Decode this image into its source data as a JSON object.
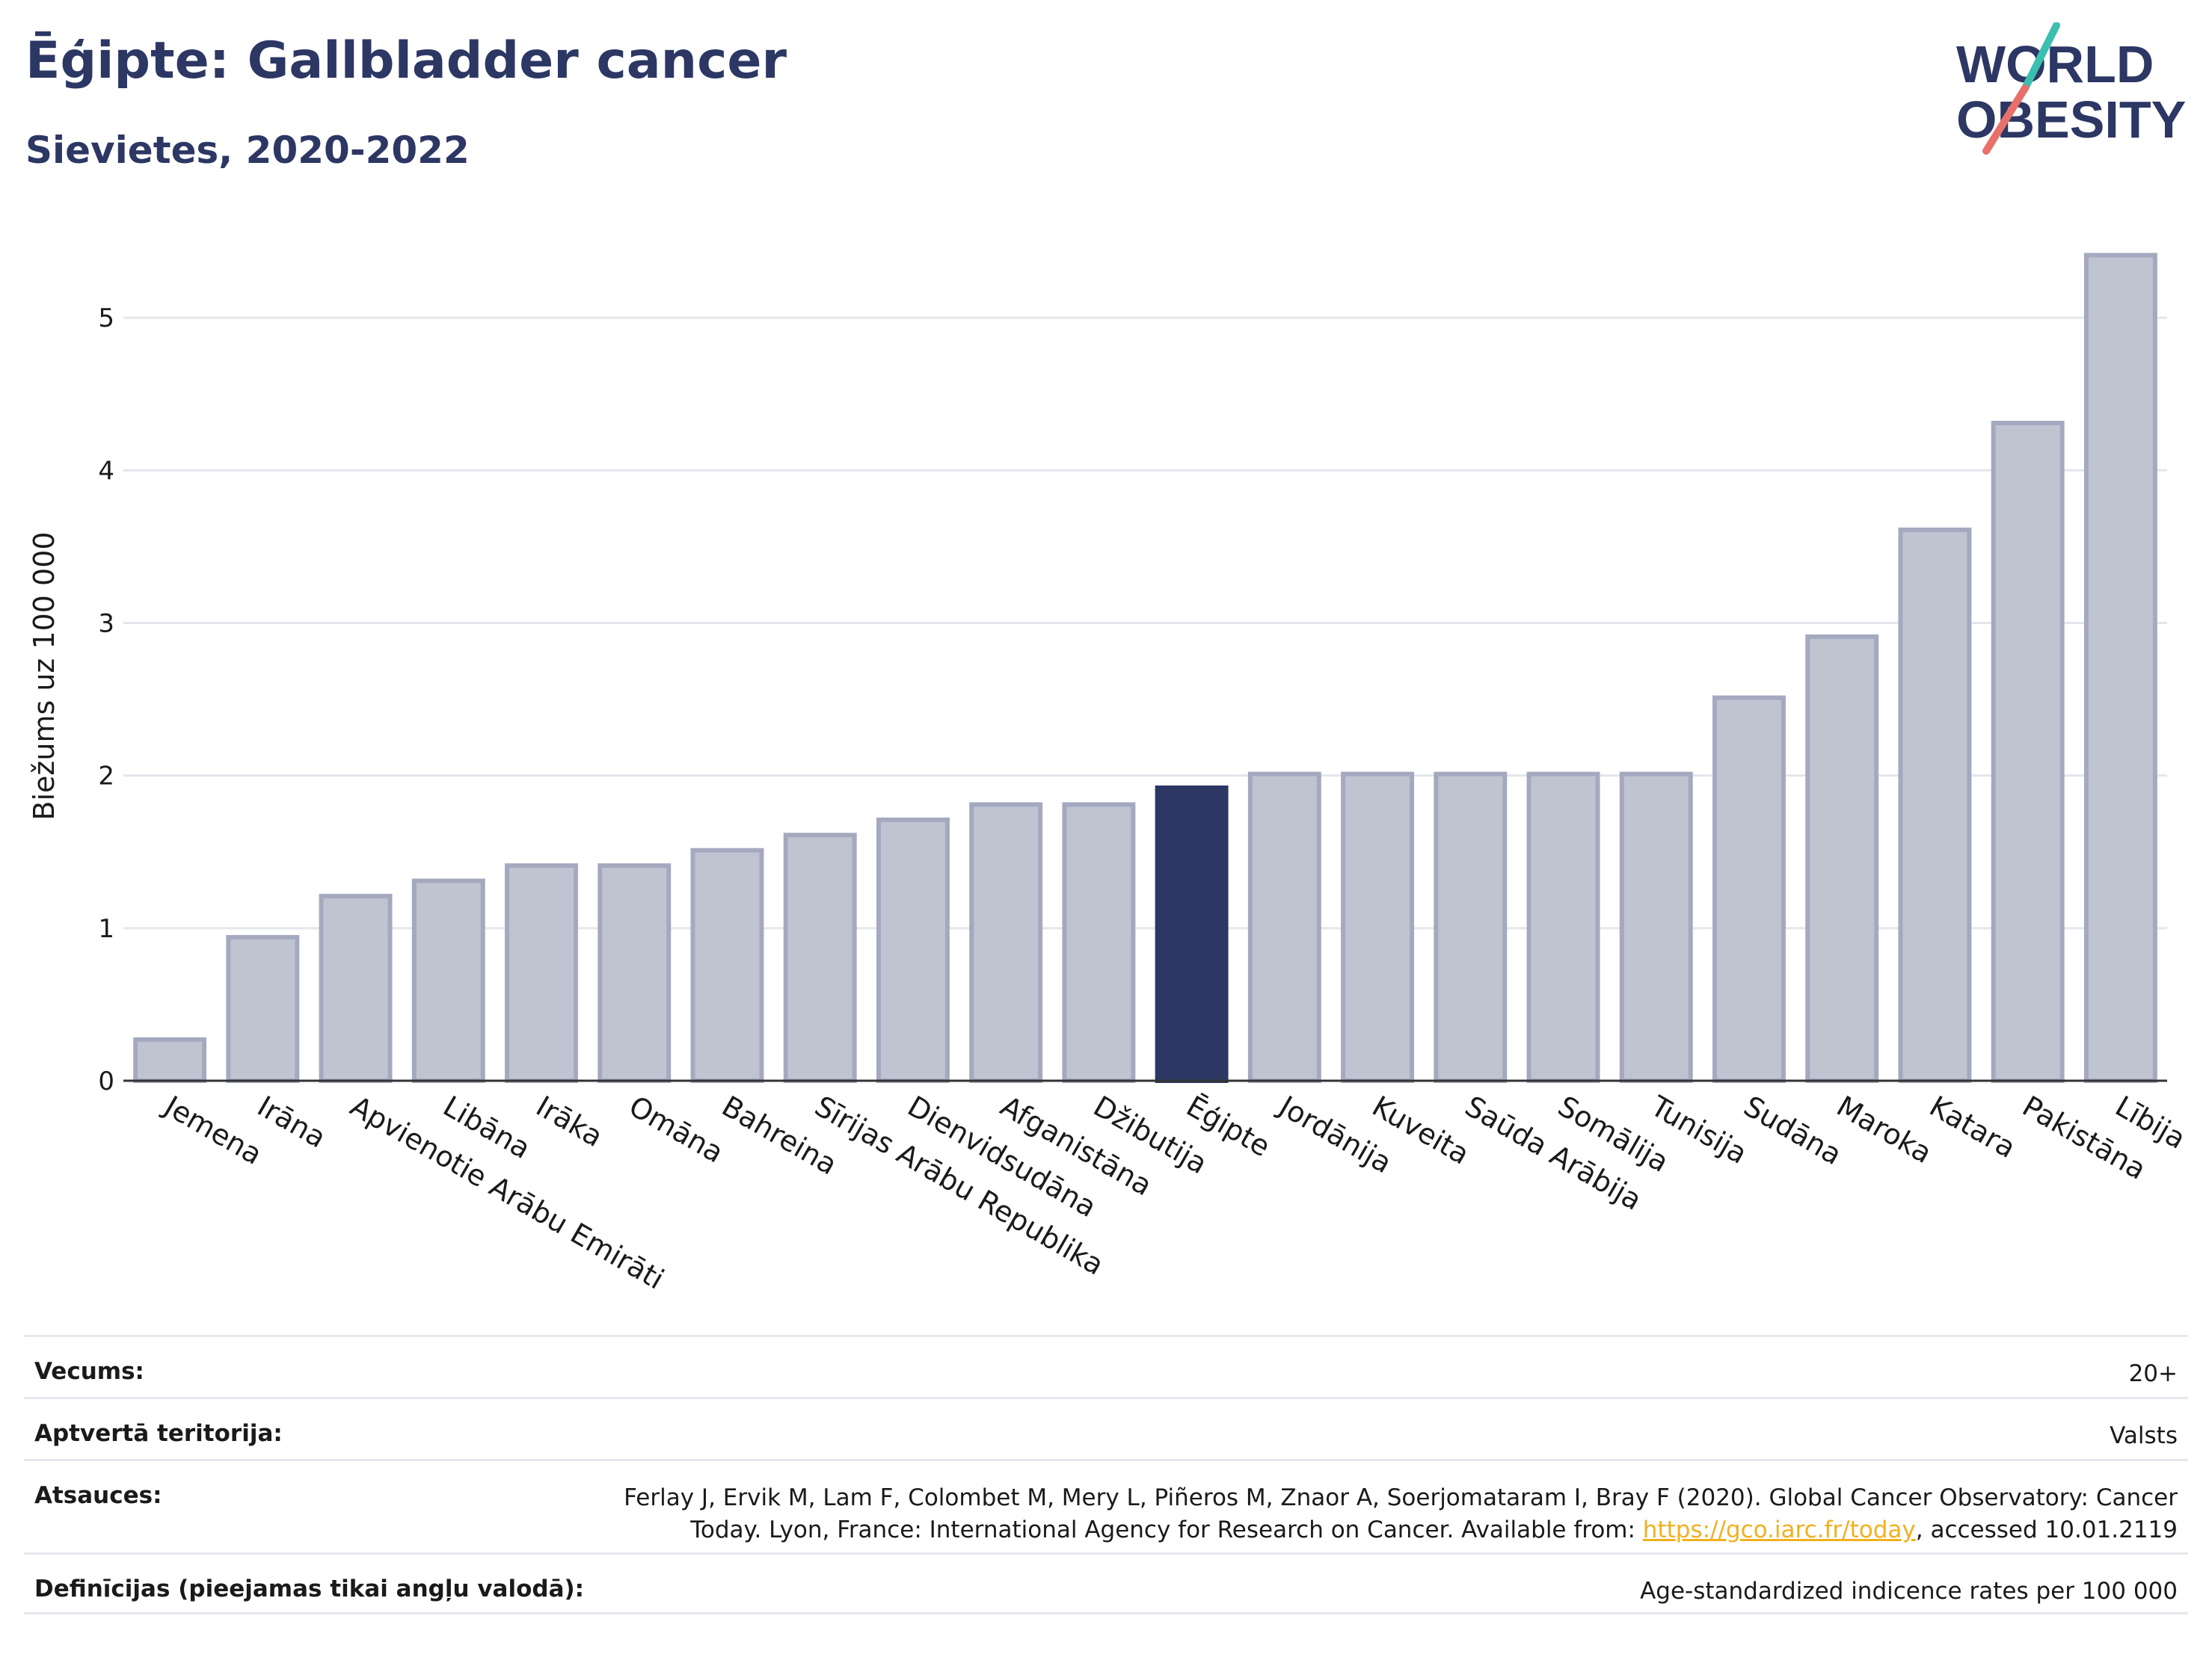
{
  "header": {
    "title": "Ēģipte: Gallbladder cancer",
    "subtitle": "Sievietes, 2020-2022",
    "logo_line1": "WORLD",
    "logo_line2": "OBESITY"
  },
  "colors": {
    "highlight": "#2c3764",
    "bar": "#c0c4d1",
    "bar_stroke": "#a4a9c0",
    "logo_teal": "#3cbfb0",
    "logo_coral": "#e8706a"
  },
  "chart_data": {
    "type": "bar",
    "ylabel": "Biežums uz 100 000",
    "ylim": [
      0,
      5.5
    ],
    "yticks": [
      0,
      1,
      2,
      3,
      4,
      5
    ],
    "grid": true,
    "highlight": "Ēģipte",
    "categories": [
      "Jemena",
      "Irāna",
      "Apvienotie Arābu Emirāti",
      "Libāna",
      "Irāka",
      "Omāna",
      "Bahreina",
      "Sīrijas Arābu Republika",
      "Dienvidsudāna",
      "Afganistāna",
      "Džibutija",
      "Ēģipte",
      "Jordānija",
      "Kuveita",
      "Saūda Arābija",
      "Somālija",
      "Tunisija",
      "Sudāna",
      "Maroka",
      "Katara",
      "Pakistāna",
      "Lībija"
    ],
    "values": [
      0.27,
      0.94,
      1.21,
      1.31,
      1.41,
      1.41,
      1.51,
      1.61,
      1.71,
      1.81,
      1.81,
      1.92,
      2.01,
      2.01,
      2.01,
      2.01,
      2.01,
      2.51,
      2.91,
      3.61,
      4.31,
      5.41
    ]
  },
  "footer": {
    "age_label": "Vecums:",
    "age_value": "20+",
    "territory_label": "Aptvertā teritorija:",
    "territory_value": "Valsts",
    "refs_label": "Atsauces:",
    "refs_line1": "Ferlay J, Ervik M, Lam F, Colombet M, Mery L, Piñeros M, Znaor A, Soerjomataram I, Bray F (2020). Global Cancer Observatory: Cancer",
    "refs_line2_pre": "Today. Lyon, France: International Agency for Research on Cancer. Available from: ",
    "refs_link": "https://gco.iarc.fr/today",
    "refs_line2_post": ", accessed 10.01.2119",
    "defs_label": "Definīcijas (pieejamas tikai angļu valodā):",
    "defs_value": "Age-standardized indicence rates per 100 000"
  }
}
